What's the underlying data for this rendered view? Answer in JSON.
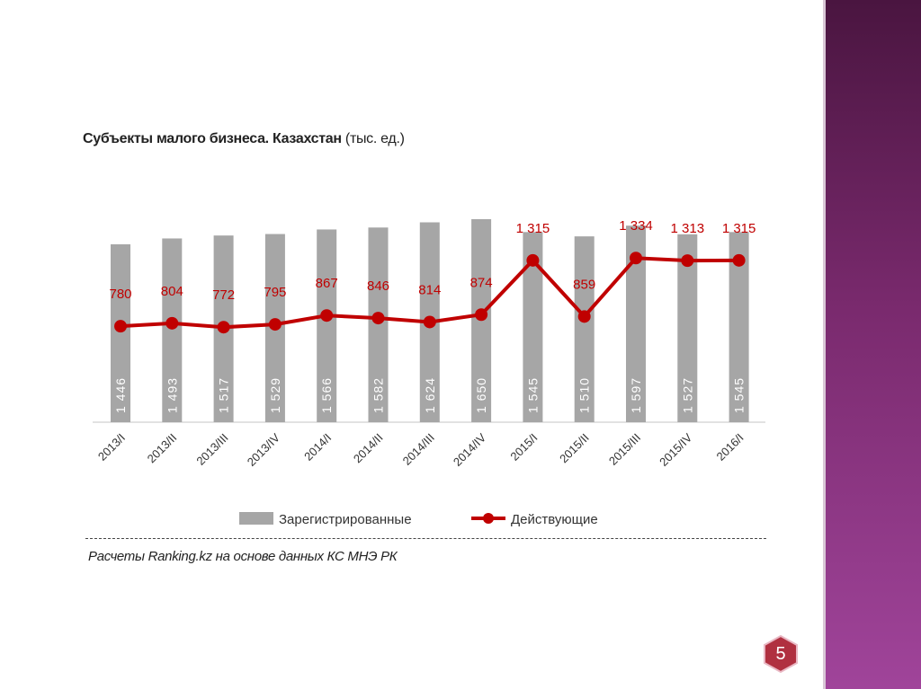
{
  "chart_data": {
    "type": "bar+line",
    "title": "Субъекты малого бизнеса. Казахстан",
    "subtitle": "(тыс. ед.)",
    "categories": [
      "2013/I",
      "2013/II",
      "2013/III",
      "2013/IV",
      "2014/I",
      "2014/II",
      "2014/III",
      "2014/IV",
      "2015/I",
      "2015/II",
      "2015/III",
      "2015/IV",
      "2016/I"
    ],
    "series": [
      {
        "name": "Зарегистрированные",
        "type": "bar",
        "color": "#a6a6a6",
        "values": [
          1446,
          1493,
          1517,
          1529,
          1566,
          1582,
          1624,
          1650,
          1545,
          1510,
          1597,
          1527,
          1545
        ],
        "labels": [
          "1 446",
          "1 493",
          "1 517",
          "1 529",
          "1 566",
          "1 582",
          "1 624",
          "1 650",
          "1 545",
          "1 510",
          "1 597",
          "1 527",
          "1 545"
        ]
      },
      {
        "name": "Действующие",
        "type": "line",
        "color": "#c00000",
        "values": [
          780,
          804,
          772,
          795,
          867,
          846,
          814,
          874,
          1315,
          859,
          1334,
          1313,
          1315
        ],
        "labels": [
          "780",
          "804",
          "772",
          "795",
          "867",
          "846",
          "814",
          "874",
          "1 315",
          "859",
          "1 334",
          "1 313",
          "1 315"
        ]
      }
    ],
    "legend": "bottom",
    "grid": false
  },
  "source": "Расчеты Ranking.kz на основе данных КС МНЭ РК",
  "page_number": "5"
}
